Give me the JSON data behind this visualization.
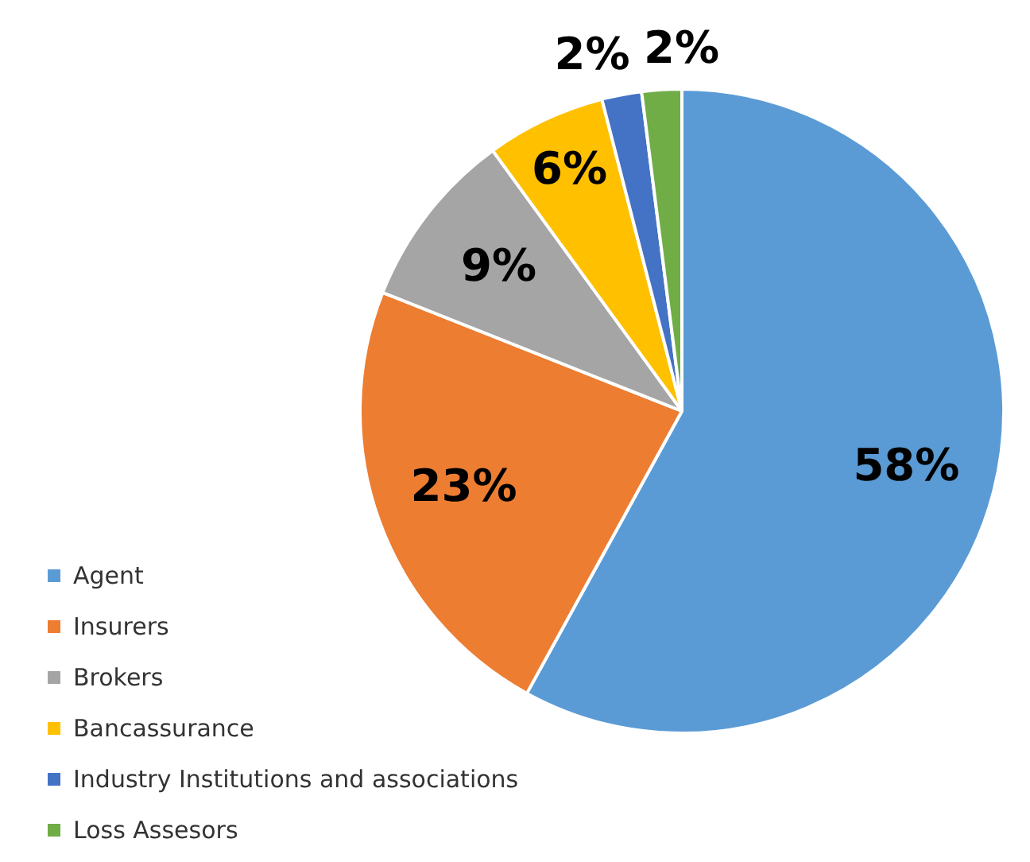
{
  "chart_data": {
    "type": "pie",
    "categories": [
      "Agent",
      "Insurers",
      "Brokers",
      "Bancassurance",
      "Industry Institutions and associations",
      "Loss Assesors"
    ],
    "values": [
      58,
      23,
      9,
      6,
      2,
      2
    ],
    "colors": [
      "#5b9bd5",
      "#ed7d31",
      "#a5a5a5",
      "#ffc000",
      "#4472c4",
      "#70ad47"
    ],
    "value_labels": [
      "58%",
      "23%",
      "9%",
      "6%",
      "2%",
      "2%"
    ],
    "legend": "bottom left"
  }
}
